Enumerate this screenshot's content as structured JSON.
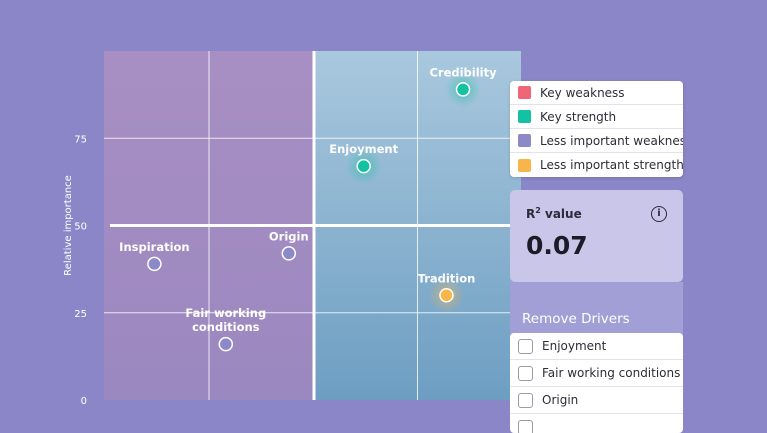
{
  "chart_data": {
    "type": "scatter",
    "ylabel": "Relative importance",
    "ylim": [
      0,
      100
    ],
    "xlim": [
      0,
      100
    ],
    "y_ticks": [
      "0",
      "25",
      "50",
      "75"
    ],
    "y_tick_values": [
      0,
      25,
      50,
      75
    ],
    "x_gridlines": [
      25,
      50,
      75
    ],
    "divider_x": 50,
    "divider_y": 50,
    "quadrant_colors": {
      "left": "#a88fc3",
      "right_top": "#a9c8de",
      "right_bottom": "#6d9ec2"
    },
    "points": [
      {
        "label": "Credibility",
        "x": 86,
        "y": 89,
        "category": "Key strength"
      },
      {
        "label": "Enjoyment",
        "x": 62,
        "y": 67,
        "category": "Key strength"
      },
      {
        "label": "Tradition",
        "x": 82,
        "y": 30,
        "category": "Less important strength"
      },
      {
        "label": "Origin",
        "x": 44,
        "y": 42,
        "category": "Less important weakness"
      },
      {
        "label": "Inspiration",
        "x": 12,
        "y": 39,
        "category": "Less important weakness"
      },
      {
        "label": "Fair working conditions",
        "label_lines": [
          "Fair working",
          "conditions"
        ],
        "x": 29,
        "y": 16,
        "category": "Less important weakness"
      }
    ]
  },
  "legend": {
    "items": [
      {
        "label": "Key weakness",
        "color": "#ee6677"
      },
      {
        "label": "Key strength",
        "color": "#14c2a3"
      },
      {
        "label": "Less important weakness",
        "color": "#8c89c9"
      },
      {
        "label": "Less important strength",
        "color": "#f7b54a"
      }
    ]
  },
  "r2": {
    "title": "R",
    "sup": "2",
    "title_rest": " value",
    "value": "0.07",
    "info_icon": "info-icon"
  },
  "remove_drivers": {
    "title": "Remove Drivers",
    "items": [
      {
        "label": "Enjoyment",
        "checked": false
      },
      {
        "label": "Fair working conditions",
        "checked": false
      },
      {
        "label": "Origin",
        "checked": false
      }
    ]
  }
}
